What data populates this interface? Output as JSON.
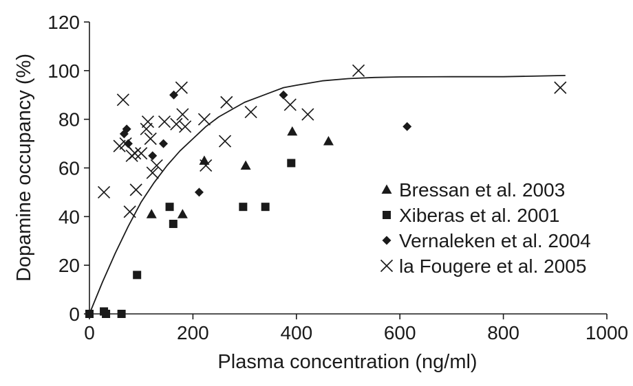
{
  "chart_data": {
    "type": "scatter",
    "xlabel": "Plasma concentration (ng/ml)",
    "ylabel": "Dopamine occupancy (%)",
    "xlim": [
      0,
      1000
    ],
    "ylim": [
      0,
      120
    ],
    "x_ticks": [
      0,
      200,
      400,
      600,
      800,
      1000
    ],
    "y_ticks": [
      0,
      20,
      40,
      60,
      80,
      100,
      120
    ],
    "grid": false,
    "legend_position": "right-center",
    "colors": {
      "ink": "#1a1a1a",
      "background": "#ffffff"
    },
    "series": [
      {
        "name": "Bressan et al. 2003",
        "marker": "triangle",
        "points": [
          [
            120,
            41
          ],
          [
            180,
            41
          ],
          [
            222,
            63
          ],
          [
            302,
            61
          ],
          [
            392,
            75
          ],
          [
            462,
            71
          ]
        ]
      },
      {
        "name": "Xiberas et al. 2001",
        "marker": "square",
        "points": [
          [
            0,
            0
          ],
          [
            28,
            1
          ],
          [
            32,
            0
          ],
          [
            62,
            0
          ],
          [
            92,
            16
          ],
          [
            155,
            44
          ],
          [
            162,
            37
          ],
          [
            297,
            44
          ],
          [
            340,
            44
          ],
          [
            390,
            62
          ]
        ]
      },
      {
        "name": "Vernaleken et al. 2004",
        "marker": "diamond",
        "points": [
          [
            67,
            74
          ],
          [
            72,
            76
          ],
          [
            75,
            70
          ],
          [
            122,
            65
          ],
          [
            143,
            70
          ],
          [
            163,
            90
          ],
          [
            212,
            50
          ],
          [
            375,
            90
          ],
          [
            614,
            77
          ]
        ]
      },
      {
        "name": "la Fougere et al. 2005",
        "marker": "x",
        "points": [
          [
            28,
            50
          ],
          [
            58,
            69
          ],
          [
            65,
            88
          ],
          [
            70,
            70
          ],
          [
            78,
            42
          ],
          [
            82,
            65
          ],
          [
            88,
            66
          ],
          [
            90,
            51
          ],
          [
            100,
            66
          ],
          [
            110,
            76
          ],
          [
            113,
            79
          ],
          [
            118,
            72
          ],
          [
            122,
            58
          ],
          [
            130,
            61
          ],
          [
            145,
            79
          ],
          [
            168,
            78
          ],
          [
            178,
            93
          ],
          [
            180,
            82
          ],
          [
            185,
            77
          ],
          [
            222,
            80
          ],
          [
            225,
            61
          ],
          [
            262,
            71
          ],
          [
            265,
            87
          ],
          [
            312,
            83
          ],
          [
            388,
            86
          ],
          [
            422,
            82
          ],
          [
            520,
            100
          ],
          [
            910,
            93
          ]
        ]
      }
    ],
    "fit_curve": {
      "name": "fit",
      "x": [
        0,
        25,
        50,
        75,
        100,
        125,
        150,
        175,
        200,
        225,
        250,
        275,
        300,
        325,
        350,
        375,
        400,
        450,
        500,
        550,
        600,
        700,
        800,
        920
      ],
      "y": [
        0,
        13,
        25,
        36,
        46,
        54,
        61,
        67,
        72,
        77,
        81,
        84,
        87,
        89,
        91,
        93,
        94,
        95.8,
        96.7,
        97.2,
        97.4,
        97.5,
        97.5,
        98
      ]
    }
  }
}
